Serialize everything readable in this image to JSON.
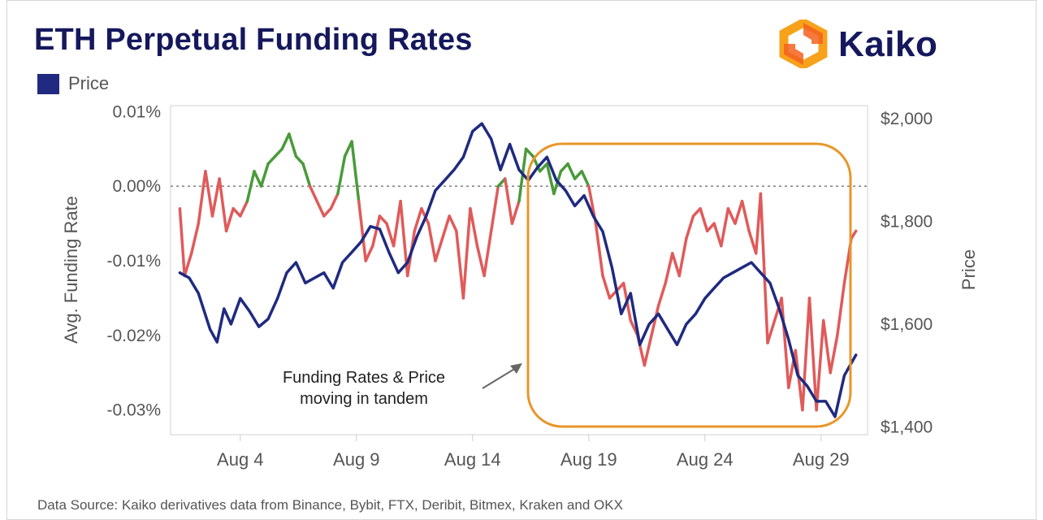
{
  "title": "ETH Perpetual Funding Rates",
  "legend": {
    "label": "Price",
    "color": "#1f2a80"
  },
  "logo": {
    "text": "Kaiko",
    "icon": "kaiko-logo-icon",
    "colors": [
      "#f7a21b",
      "#f4621f"
    ]
  },
  "footer": "Data Source: Kaiko derivatives data from Binance, Bybit, FTX, Deribit, Bitmex, Kraken and OKX",
  "annotation": {
    "lines": [
      "Funding Rates & Price",
      "moving in tandem"
    ],
    "box_color": "#e8962a"
  },
  "chart_data": {
    "type": "line",
    "x_unit": "date (August)",
    "x_range": [
      "Aug 1",
      "Aug 31"
    ],
    "x_ticks": [
      "Aug 4",
      "Aug 9",
      "Aug 14",
      "Aug 19",
      "Aug 24",
      "Aug 29"
    ],
    "x_tick_days": [
      4,
      9,
      14,
      19,
      24,
      29
    ],
    "y_left": {
      "label": "Avg. Funding Rate",
      "ticks": [
        "0.01%",
        "0.00%",
        "-0.01%",
        "-0.02%",
        "-0.03%"
      ],
      "tick_values": [
        0.01,
        0.0,
        -0.01,
        -0.02,
        -0.03
      ],
      "range": [
        -0.0333,
        0.0108
      ],
      "unit": "%"
    },
    "y_right": {
      "label": "Price",
      "ticks": [
        "$2,000",
        "$1,800",
        "$1,600",
        "$1,400"
      ],
      "tick_values": [
        2000,
        1800,
        1600,
        1400
      ],
      "range": [
        1385,
        2025
      ]
    },
    "reference_line": {
      "y": 0.0,
      "style": "dotted"
    },
    "series": [
      {
        "name": "Price",
        "axis": "right",
        "color": "#1f2a80",
        "x": [
          1.4,
          1.8,
          2.2,
          2.7,
          3.0,
          3.3,
          3.6,
          4.0,
          4.4,
          4.8,
          5.2,
          5.6,
          6.0,
          6.4,
          6.8,
          7.2,
          7.6,
          8.0,
          8.4,
          8.8,
          9.2,
          9.6,
          10.0,
          10.4,
          10.8,
          11.2,
          11.6,
          12.0,
          12.4,
          12.8,
          13.2,
          13.6,
          14.0,
          14.4,
          14.8,
          15.2,
          15.6,
          16.0,
          16.4,
          16.8,
          17.2,
          17.6,
          18.0,
          18.4,
          18.8,
          19.2,
          19.6,
          20.0,
          20.4,
          20.8,
          21.2,
          21.6,
          22.0,
          22.4,
          22.8,
          23.2,
          23.6,
          24.0,
          24.4,
          24.8,
          25.2,
          25.6,
          26.0,
          26.4,
          26.8,
          27.2,
          27.6,
          28.0,
          28.4,
          28.8,
          29.2,
          29.6,
          30.0,
          30.5
        ],
        "y": [
          1700,
          1690,
          1660,
          1590,
          1565,
          1630,
          1600,
          1650,
          1625,
          1595,
          1610,
          1650,
          1700,
          1720,
          1680,
          1690,
          1700,
          1670,
          1720,
          1740,
          1760,
          1790,
          1785,
          1740,
          1700,
          1720,
          1770,
          1810,
          1860,
          1880,
          1900,
          1925,
          1975,
          1990,
          1960,
          1900,
          1950,
          1900,
          1880,
          1905,
          1925,
          1880,
          1860,
          1830,
          1850,
          1810,
          1780,
          1710,
          1620,
          1660,
          1560,
          1600,
          1620,
          1590,
          1560,
          1600,
          1620,
          1650,
          1670,
          1690,
          1700,
          1710,
          1720,
          1700,
          1680,
          1630,
          1570,
          1500,
          1480,
          1450,
          1450,
          1420,
          1500,
          1540
        ]
      },
      {
        "name": "",
        "axis": "left",
        "note": "avg funding rate (red below 0, green above 0)",
        "colors": {
          "negative": "#e05a5a",
          "positive": "#4a9a3a"
        },
        "x": [
          1.4,
          1.6,
          1.9,
          2.2,
          2.5,
          2.8,
          3.1,
          3.4,
          3.7,
          4.0,
          4.3,
          4.6,
          4.9,
          5.2,
          5.5,
          5.8,
          6.1,
          6.4,
          6.7,
          7.0,
          7.3,
          7.6,
          7.9,
          8.2,
          8.5,
          8.8,
          9.1,
          9.4,
          9.7,
          10.0,
          10.3,
          10.6,
          10.9,
          11.2,
          11.5,
          11.8,
          12.1,
          12.4,
          12.7,
          13.0,
          13.3,
          13.6,
          13.9,
          14.2,
          14.5,
          14.8,
          15.1,
          15.4,
          15.7,
          16.0,
          16.3,
          16.6,
          16.9,
          17.2,
          17.5,
          17.8,
          18.1,
          18.4,
          18.7,
          19.0,
          19.3,
          19.6,
          19.9,
          20.2,
          20.5,
          20.8,
          21.1,
          21.4,
          21.7,
          22.0,
          22.3,
          22.6,
          22.9,
          23.2,
          23.5,
          23.8,
          24.1,
          24.4,
          24.7,
          25.0,
          25.3,
          25.6,
          25.9,
          26.2,
          26.4,
          26.7,
          27.0,
          27.3,
          27.6,
          27.9,
          28.2,
          28.5,
          28.8,
          29.1,
          29.4,
          29.7,
          30.0,
          30.3,
          30.5
        ],
        "y": [
          -0.003,
          -0.012,
          -0.009,
          -0.005,
          0.002,
          -0.004,
          0.001,
          -0.006,
          -0.003,
          -0.004,
          -0.002,
          0.002,
          0.0,
          0.003,
          0.004,
          0.005,
          0.007,
          0.004,
          0.003,
          0.0,
          -0.002,
          -0.004,
          -0.003,
          -0.001,
          0.004,
          0.006,
          -0.002,
          -0.01,
          -0.008,
          -0.004,
          -0.005,
          -0.008,
          -0.002,
          -0.012,
          -0.006,
          -0.003,
          -0.005,
          -0.01,
          -0.007,
          -0.004,
          -0.006,
          -0.015,
          -0.003,
          -0.008,
          -0.012,
          -0.006,
          0.0,
          0.001,
          -0.005,
          -0.002,
          0.005,
          0.004,
          0.002,
          0.003,
          -0.001,
          0.002,
          0.003,
          0.001,
          0.002,
          0.0,
          -0.005,
          -0.012,
          -0.015,
          -0.014,
          -0.013,
          -0.018,
          -0.02,
          -0.024,
          -0.02,
          -0.016,
          -0.013,
          -0.009,
          -0.012,
          -0.007,
          -0.004,
          -0.003,
          -0.006,
          -0.005,
          -0.008,
          -0.003,
          -0.005,
          -0.002,
          -0.006,
          -0.009,
          -0.001,
          -0.021,
          -0.018,
          -0.015,
          -0.027,
          -0.022,
          -0.03,
          -0.015,
          -0.03,
          -0.018,
          -0.025,
          -0.02,
          -0.013,
          -0.007,
          -0.006
        ]
      }
    ],
    "grid": false,
    "legend_position": "top-left"
  }
}
